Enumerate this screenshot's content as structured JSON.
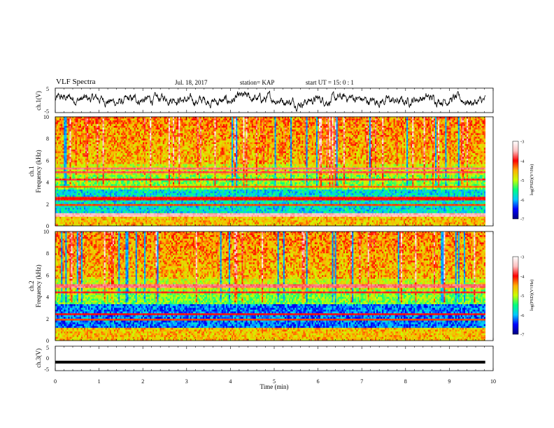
{
  "header": {
    "title": "VLF Spectra",
    "date": "Jul. 18, 2017",
    "station": "station= KAP",
    "start_label": "start  UT =",
    "start_time": "15: 0  : 1"
  },
  "chart_data": [
    {
      "type": "line",
      "panel": "ch1-waveform",
      "ylabel": "ch.1(V)",
      "ylim": [
        -5,
        5
      ],
      "yticks": [
        "5",
        "-5"
      ],
      "xlim": [
        0,
        9.82
      ],
      "description_series": "voltage fluctuating around 0 with amplitude ~ +/-2.5"
    },
    {
      "type": "heatmap",
      "panel": "ch1-spectrogram",
      "ylabel": "ch.1\nFrequency (kHz)",
      "ylabel_line1": "ch.1",
      "ylabel_line2": "Frequency (kHz)",
      "ylim": [
        0,
        10
      ],
      "yticks": [
        "0",
        "2",
        "4",
        "6",
        "8",
        "10"
      ],
      "xlim": [
        0,
        10
      ],
      "colorbar": {
        "label": "log(PSD)(V²/Hz)",
        "range": [
          -7,
          -3
        ],
        "ticks": [
          "-3",
          "-4",
          "-5",
          "-6",
          "-7"
        ],
        "colors": [
          "#000080",
          "#0000ff",
          "#00c8ff",
          "#00ff80",
          "#c8ff00",
          "#ffb000",
          "#ff0000",
          "#ffc0c0",
          "#ffffff"
        ]
      },
      "bands": [
        {
          "freq_khz": 1.0,
          "level": -3.5
        },
        {
          "freq_khz": 1.9,
          "level": -4.2
        },
        {
          "freq_khz": 2.5,
          "level": -4.0
        },
        {
          "freq_khz": 3.6,
          "level": -4.3
        },
        {
          "freq_khz": 4.2,
          "level": -3.9
        },
        {
          "freq_khz": 4.9,
          "level": -3.8
        },
        {
          "freq_khz": 5.3,
          "level": -3.7
        }
      ]
    },
    {
      "type": "heatmap",
      "panel": "ch2-spectrogram",
      "ylabel_line1": "ch.2",
      "ylabel_line2": "Frequency (kHz)",
      "ylim": [
        0,
        10
      ],
      "yticks": [
        "0",
        "2",
        "4",
        "6",
        "8",
        "10"
      ],
      "xlim": [
        0,
        10
      ],
      "colorbar": {
        "label": "log(PSD)(V²/Hz)",
        "range": [
          -7,
          -3
        ],
        "ticks": [
          "-3",
          "-4",
          "-5",
          "-6",
          "-7"
        ]
      },
      "bands": [
        {
          "freq_khz": 1.9,
          "level": -4.2
        },
        {
          "freq_khz": 2.4,
          "level": -4.0
        },
        {
          "freq_khz": 4.4,
          "level": -3.9
        },
        {
          "freq_khz": 5.0,
          "level": -3.7
        }
      ]
    },
    {
      "type": "line",
      "panel": "ch3-waveform",
      "ylabel": "ch.3(V)",
      "ylim": [
        -5,
        5
      ],
      "yticks": [
        "5",
        "0",
        "-5"
      ],
      "xlim": [
        0,
        9.82
      ],
      "constant_value": -1.5
    }
  ],
  "xaxis": {
    "label": "Time (min)",
    "ticks": [
      "0",
      "1",
      "2",
      "3",
      "4",
      "5",
      "6",
      "7",
      "8",
      "9",
      "10"
    ]
  }
}
